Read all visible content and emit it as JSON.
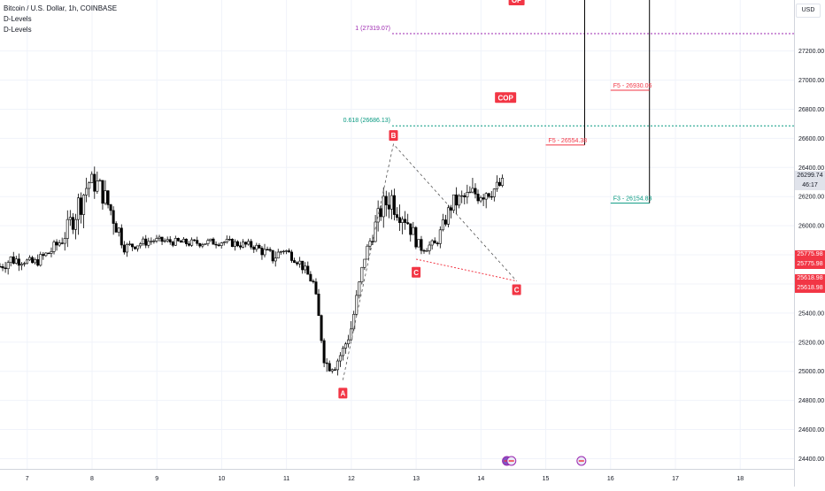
{
  "header": {
    "symbol": "Bitcoin / U.S. Dollar, 1h, COINBASE",
    "indicator_1": "D-Levels",
    "indicator_2": "D-Levels",
    "currency": "USD"
  },
  "price_badges": {
    "current_price": "26299.74",
    "countdown": "46:17",
    "level_1a": "25775.98",
    "level_1b": "25775.98",
    "level_2a": "25618.98",
    "level_2b": "25618.98"
  },
  "colors": {
    "up": "#ffffff",
    "down": "#000000",
    "red": "#f23645",
    "green": "#089981",
    "purple": "#9c27b0",
    "grid": "#f0f3fa",
    "axis_text": "#131722"
  },
  "chart_data": {
    "type": "candlestick",
    "title": "Bitcoin / U.S. Dollar, 1h, COINBASE",
    "y_unit": "USD",
    "ylim": [
      24330,
      27550
    ],
    "xlim": [
      6.58,
      18.83
    ],
    "y_ticks": [
      24400,
      24600,
      24800,
      25000,
      25200,
      25400,
      25600,
      25800,
      26000,
      26200,
      26400,
      26600,
      26800,
      27000,
      27200
    ],
    "y_tick_labels": [
      "24400.00",
      "24600.00",
      "24800.00",
      "25000.00",
      "25200.00",
      "25400.00",
      "",
      "",
      "26000.00",
      "26200.00",
      "26400.00",
      "26600.00",
      "26800.00",
      "27000.00",
      "27200.00"
    ],
    "x_ticks": [
      7,
      8,
      9,
      10,
      11,
      12,
      13,
      14,
      15,
      16,
      17,
      18
    ],
    "x_tick_labels": [
      "7",
      "8",
      "9",
      "10",
      "11",
      "12",
      "13",
      "14",
      "15",
      "16",
      "17",
      "18"
    ],
    "grid": true,
    "candles_description": "hourly OHLC, approximated",
    "waypoints": [
      [
        6.58,
        25720,
        25640,
        25800
      ],
      [
        6.75,
        25770,
        25640,
        25860
      ],
      [
        6.95,
        25760,
        25720,
        25840
      ],
      [
        7.1,
        25740,
        25650,
        25800
      ],
      [
        7.35,
        25820,
        25740,
        25900
      ],
      [
        7.55,
        25910,
        25760,
        25960
      ],
      [
        7.8,
        26150,
        26000,
        26450
      ],
      [
        7.95,
        26300,
        26150,
        26450
      ],
      [
        8.1,
        26280,
        26150,
        26450
      ],
      [
        8.35,
        26050,
        25700,
        26100
      ],
      [
        8.5,
        25850,
        25780,
        25920
      ],
      [
        8.75,
        25880,
        25820,
        25950
      ],
      [
        8.95,
        25900,
        25850,
        25950
      ],
      [
        9.5,
        25880,
        25830,
        25940
      ],
      [
        10.0,
        25890,
        25840,
        25950
      ],
      [
        10.5,
        25860,
        25800,
        25920
      ],
      [
        10.8,
        25780,
        25700,
        25900
      ],
      [
        10.95,
        25840,
        25780,
        25920
      ],
      [
        11.2,
        25750,
        25690,
        25810
      ],
      [
        11.42,
        25600,
        25550,
        25700
      ],
      [
        11.6,
        25050,
        24950,
        25200
      ],
      [
        11.75,
        25050,
        24950,
        25150
      ],
      [
        11.88,
        25150,
        25050,
        25230
      ],
      [
        12.0,
        25300,
        25200,
        25450
      ],
      [
        12.2,
        25780,
        25700,
        25850
      ],
      [
        12.45,
        26100,
        25950,
        26250
      ],
      [
        12.6,
        26200,
        26100,
        26560
      ],
      [
        12.85,
        26050,
        25900,
        26200
      ],
      [
        13.05,
        25850,
        25780,
        25950
      ],
      [
        13.3,
        25870,
        25820,
        25950
      ],
      [
        13.55,
        26150,
        26000,
        26250
      ],
      [
        13.8,
        26200,
        26100,
        26350
      ],
      [
        14.05,
        26250,
        26150,
        26550
      ],
      [
        14.2,
        26250,
        26150,
        26360
      ],
      [
        14.37,
        26300,
        26200,
        26380
      ]
    ],
    "hlines": [
      {
        "label": "1 (27319.07)",
        "value": 27319.07,
        "x_start": 12.63,
        "color": "#9c27b0",
        "style": "dotted"
      },
      {
        "label": "0.618 (26686.13)",
        "value": 26686.13,
        "x_start": 12.63,
        "color": "#089981",
        "style": "dotted"
      }
    ],
    "segments": [
      {
        "label": "F5 - 26554.38",
        "value": 26554.38,
        "x_start": 15.0,
        "x_end": 15.6,
        "color": "#f23645"
      },
      {
        "label": "F5 - 26930.06",
        "value": 26930.06,
        "x_start": 16.0,
        "x_end": 16.6,
        "color": "#f23645"
      },
      {
        "label": "F3 - 26154.83",
        "value": 26154.83,
        "x_start": 16.0,
        "x_end": 16.6,
        "color": "#089981"
      }
    ],
    "vlines": [
      {
        "x": 15.6,
        "from": 26554.38,
        "to": 27550
      },
      {
        "x": 16.6,
        "from": 26154.83,
        "to": 27550
      }
    ],
    "pattern": {
      "points": [
        {
          "label": "A",
          "x": 11.87,
          "y": 24940,
          "label_y": 24850
        },
        {
          "label": "B",
          "x": 12.65,
          "y": 26560,
          "label_y": 26620
        },
        {
          "label": "C",
          "x": 13.0,
          "y": 25770,
          "label_y": 25680
        },
        {
          "label": "C",
          "x": 14.55,
          "y": 25620,
          "label_y": 25560
        }
      ],
      "abc_path": [
        [
          11.87,
          24940
        ],
        [
          12.65,
          26560
        ],
        [
          14.55,
          25620
        ]
      ],
      "cc_path": [
        [
          13.0,
          25770
        ],
        [
          14.55,
          25620
        ]
      ]
    },
    "markers": [
      {
        "text": "COP",
        "x": 14.38,
        "y": 26880
      },
      {
        "text": "OP",
        "x": 14.55,
        "y": 27550
      }
    ],
    "event_icons": [
      14.4,
      14.47,
      15.55
    ]
  }
}
